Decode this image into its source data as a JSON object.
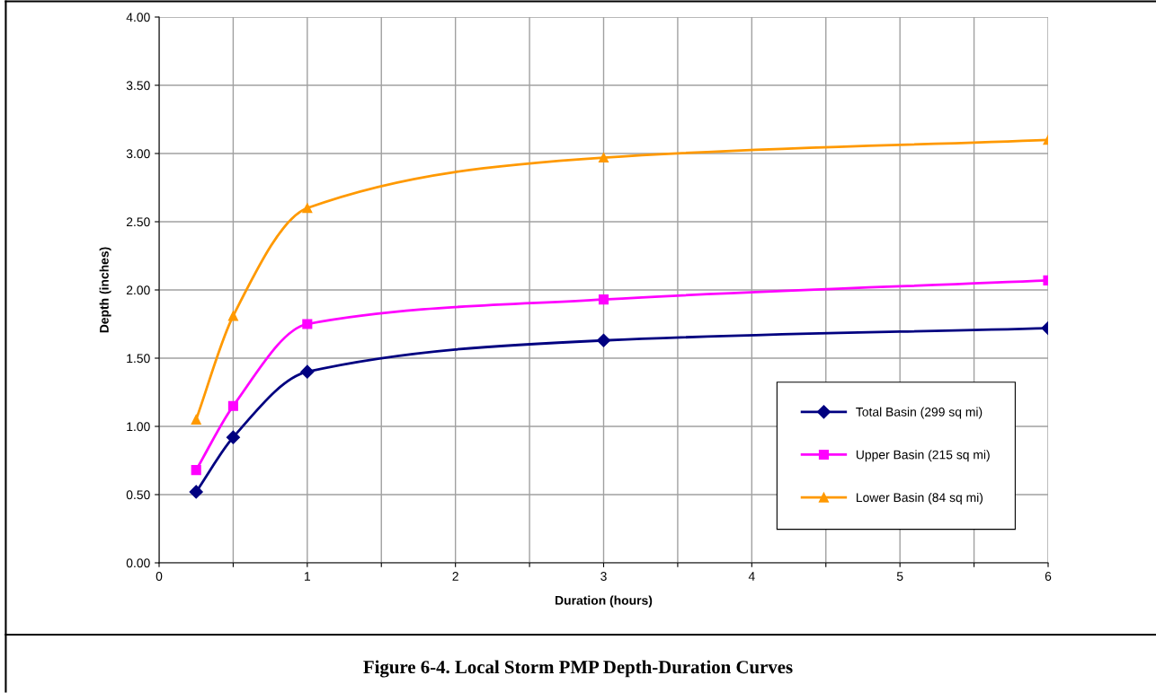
{
  "chart_data": {
    "type": "line",
    "title": "Figure 6-4. Local Storm PMP Depth-Duration Curves",
    "xlabel": "Duration (hours)",
    "ylabel": "Depth (inches)",
    "x": [
      0.25,
      0.5,
      1,
      3,
      6
    ],
    "series": [
      {
        "name": "Total Basin (299 sq mi)",
        "color": "#000080",
        "marker": "diamond",
        "values": [
          0.52,
          0.92,
          1.4,
          1.63,
          1.72
        ]
      },
      {
        "name": "Upper Basin (215 sq mi)",
        "color": "#ff00ff",
        "marker": "square",
        "values": [
          0.68,
          1.15,
          1.75,
          1.93,
          2.07
        ]
      },
      {
        "name": "Lower Basin (84 sq mi)",
        "color": "#ff9900",
        "marker": "triangle",
        "values": [
          1.05,
          1.81,
          2.6,
          2.97,
          3.1
        ]
      }
    ],
    "xlim": [
      0,
      6
    ],
    "xticks": [
      0,
      {
        "value": 0.5,
        "label": null
      },
      1,
      {
        "value": 1.5,
        "label": null
      },
      2,
      {
        "value": 2.5,
        "label": null
      },
      3,
      {
        "value": 3.5,
        "label": null
      },
      4,
      {
        "value": 4.5,
        "label": null
      },
      5,
      {
        "value": 5.5,
        "label": null
      },
      6
    ],
    "ylim": [
      0,
      4
    ],
    "yticks": [
      {
        "value": 0,
        "label": "0.00"
      },
      {
        "value": 0.5,
        "label": "0.50"
      },
      {
        "value": 1,
        "label": "1.00"
      },
      {
        "value": 1.5,
        "label": "1.50"
      },
      {
        "value": 2,
        "label": "2.00"
      },
      {
        "value": 2.5,
        "label": "2.50"
      },
      {
        "value": 3,
        "label": "3.00"
      },
      {
        "value": 3.5,
        "label": "3.50"
      },
      {
        "value": 4,
        "label": "4.00"
      }
    ],
    "grid": true,
    "legend": "bottom right",
    "line_style": "solid"
  }
}
